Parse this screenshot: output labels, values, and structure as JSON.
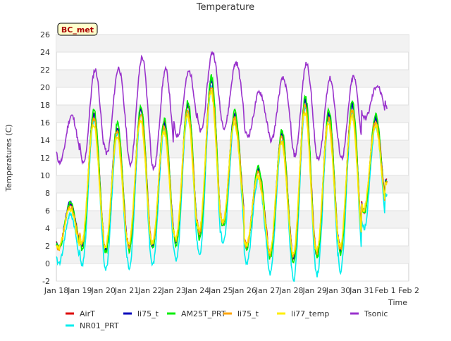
{
  "chart_data": {
    "type": "line",
    "title": "Temperature",
    "xlabel": "Time",
    "ylabel": "Temperatures (C)",
    "annotation": "BC_met",
    "ylim": [
      -2,
      26
    ],
    "yticks": [
      -2,
      0,
      2,
      4,
      6,
      8,
      10,
      12,
      14,
      16,
      18,
      20,
      22,
      24,
      26
    ],
    "xlim": [
      0,
      15
    ],
    "xticks": [
      {
        "x": 0,
        "label": "Jan 18"
      },
      {
        "x": 1,
        "label": "Jan 19"
      },
      {
        "x": 2,
        "label": "Jan 20"
      },
      {
        "x": 3,
        "label": "Jan 21"
      },
      {
        "x": 4,
        "label": "Jan 22"
      },
      {
        "x": 5,
        "label": "Jan 23"
      },
      {
        "x": 6,
        "label": "Jan 24"
      },
      {
        "x": 7,
        "label": "Jan 25"
      },
      {
        "x": 8,
        "label": "Jan 26"
      },
      {
        "x": 9,
        "label": "Jan 27"
      },
      {
        "x": 10,
        "label": "Jan 28"
      },
      {
        "x": 11,
        "label": "Jan 29"
      },
      {
        "x": 12,
        "label": "Jan 30"
      },
      {
        "x": 13,
        "label": "Jan 31"
      },
      {
        "x": 14,
        "label": "Feb 1"
      },
      {
        "x": 15,
        "label": "Feb 2"
      }
    ],
    "grid": true,
    "legend_placement": "bottom",
    "day_extrema": [
      {
        "day": "Jan 18",
        "air_max": 6.8,
        "air_min": 1.8,
        "tsonic_max": 16.8,
        "tsonic_min": 11.5
      },
      {
        "day": "Jan 19",
        "air_max": 17.0,
        "air_min": 2.0,
        "tsonic_max": 22.0,
        "tsonic_min": 11.3
      },
      {
        "day": "Jan 20",
        "air_max": 15.5,
        "air_min": 1.5,
        "tsonic_max": 22.2,
        "tsonic_min": 13.0
      },
      {
        "day": "Jan 21",
        "air_max": 17.5,
        "air_min": 1.8,
        "tsonic_max": 23.4,
        "tsonic_min": 12.0
      },
      {
        "day": "Jan 22",
        "air_max": 16.0,
        "air_min": 2.0,
        "tsonic_max": 22.0,
        "tsonic_min": 10.8
      },
      {
        "day": "Jan 23",
        "air_max": 18.0,
        "air_min": 2.5,
        "tsonic_max": 21.8,
        "tsonic_min": 14.5
      },
      {
        "day": "Jan 24",
        "air_max": 20.8,
        "air_min": 3.2,
        "tsonic_max": 24.0,
        "tsonic_min": 15.0
      },
      {
        "day": "Jan 25",
        "air_max": 17.0,
        "air_min": 4.5,
        "tsonic_max": 22.8,
        "tsonic_min": 15.5
      },
      {
        "day": "Jan 26",
        "air_max": 10.7,
        "air_min": 5.0,
        "tsonic_max": 19.5,
        "tsonic_min": 15.5
      },
      {
        "day": "Jan 27",
        "air_max": 14.8,
        "air_min": 1.5,
        "tsonic_max": 21.0,
        "tsonic_min": 14.0
      },
      {
        "day": "Jan 28",
        "air_max": 18.5,
        "air_min": 0.5,
        "tsonic_max": 22.7,
        "tsonic_min": 14.5
      },
      {
        "day": "Jan 29",
        "air_max": 17.0,
        "air_min": 1.0,
        "tsonic_max": 21.0,
        "tsonic_min": 11.8
      },
      {
        "day": "Jan 30",
        "air_max": 18.0,
        "air_min": 1.5,
        "tsonic_max": 21.2,
        "tsonic_min": 12.0
      },
      {
        "day": "Jan 31",
        "air_max": 16.6,
        "air_min": 6.0,
        "tsonic_max": 20.2,
        "tsonic_min": 16.5
      },
      {
        "day": "Feb 1",
        "air_max": 10.3,
        "air_min": 9.3,
        "tsonic_max": 21.0,
        "tsonic_min": 17.5
      }
    ],
    "series": [
      {
        "name": "AirT",
        "color": "#dd0000"
      },
      {
        "name": "li75_t",
        "color": "#0000bb"
      },
      {
        "name": "AM25T_PRT",
        "color": "#00ee00"
      },
      {
        "name": "li75_t",
        "color": "#ffa500"
      },
      {
        "name": "li77_temp",
        "color": "#ffee00"
      },
      {
        "name": "Tsonic",
        "color": "#9932cc"
      },
      {
        "name": "NR01_PRT",
        "color": "#00eeee"
      }
    ]
  }
}
